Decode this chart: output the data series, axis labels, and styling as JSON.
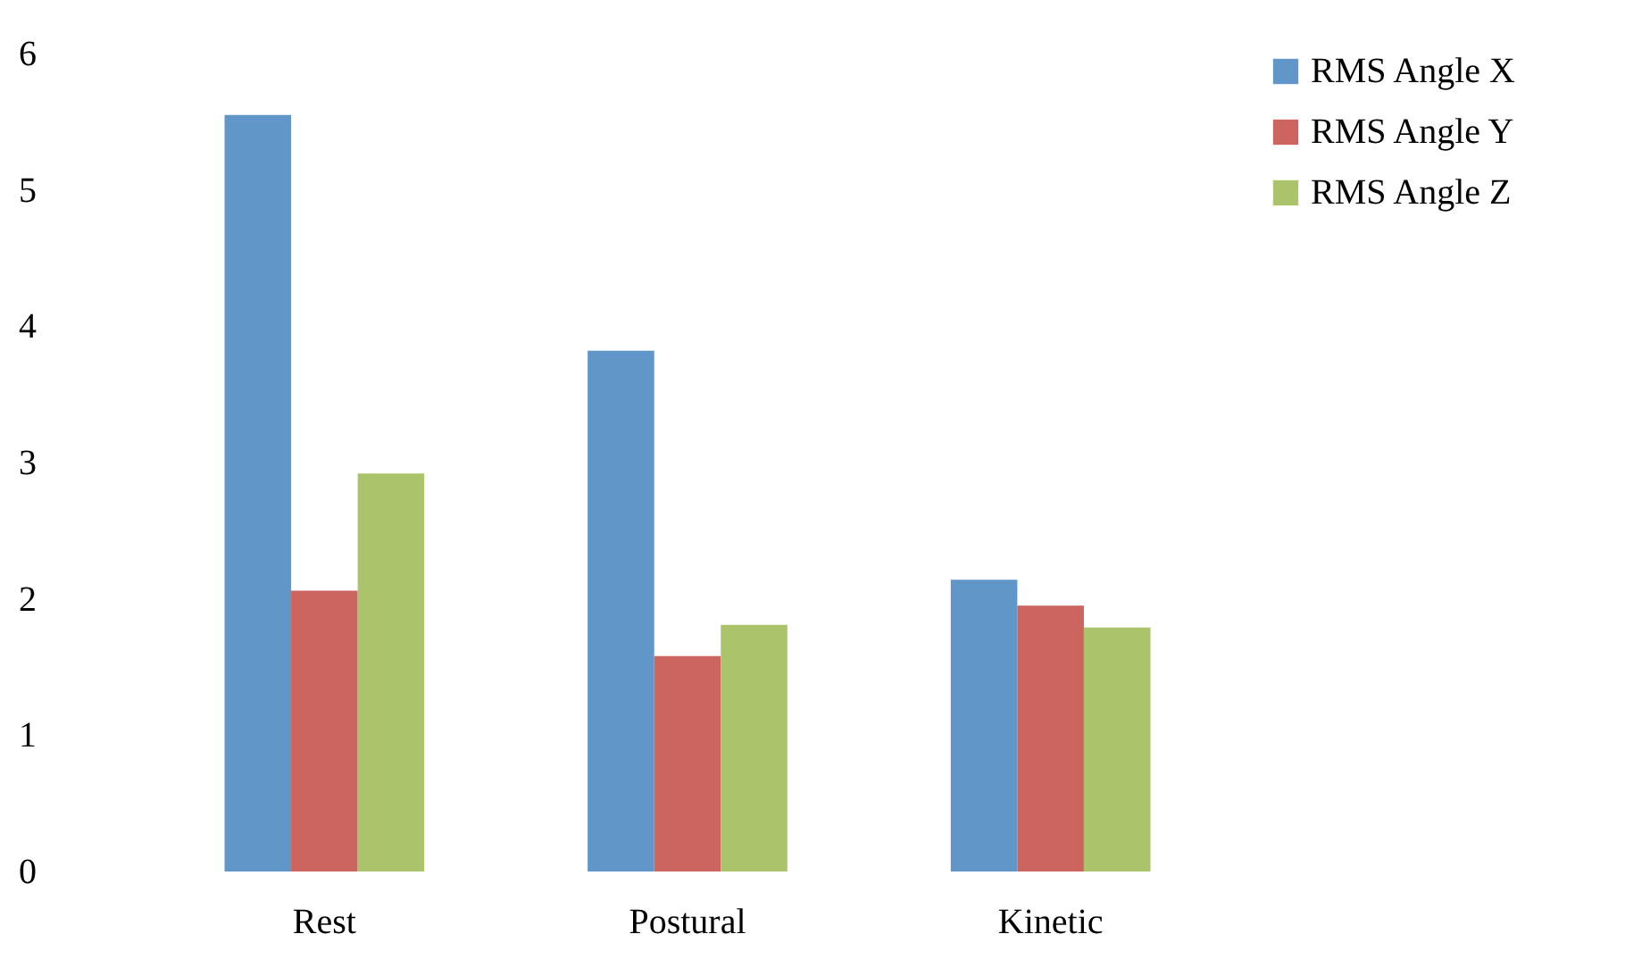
{
  "chart_data": {
    "type": "bar",
    "categories": [
      "Rest",
      "Postural",
      "Kinetic"
    ],
    "series": [
      {
        "name": "RMS Angle X",
        "color": "#6096c8",
        "values": [
          5.55,
          3.82,
          2.14
        ]
      },
      {
        "name": "RMS Angle Y",
        "color": "#cc6560",
        "values": [
          2.06,
          1.58,
          1.95
        ]
      },
      {
        "name": "RMS Angle Z",
        "color": "#abc46c",
        "values": [
          2.92,
          1.81,
          1.79
        ]
      }
    ],
    "ylim": [
      0,
      6
    ],
    "yticks": [
      0,
      1,
      2,
      3,
      4,
      5,
      6
    ],
    "grid": false,
    "legend": "right"
  }
}
